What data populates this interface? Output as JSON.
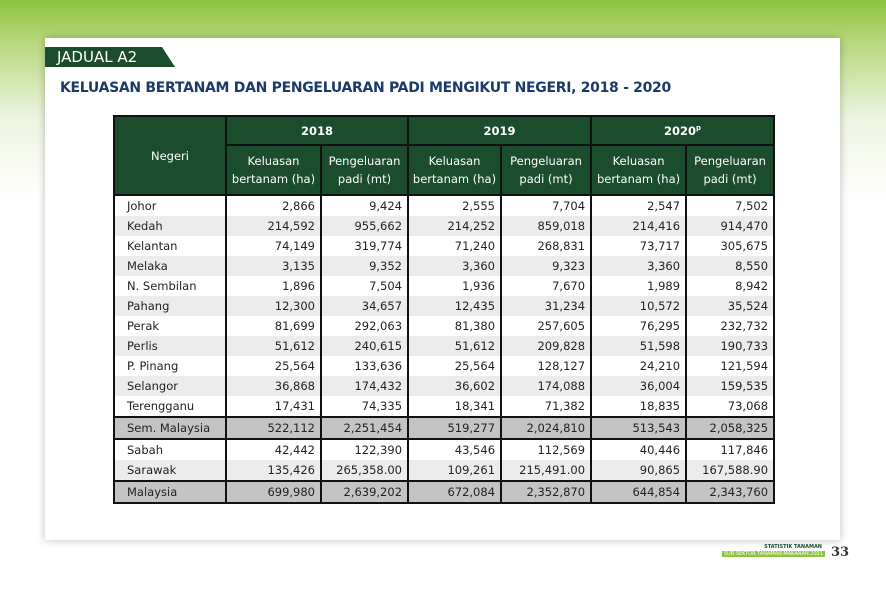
{
  "header": {
    "label": "JADUAL A2",
    "title": "KELUASAN BERTANAM DAN PENGELUARAN PADI MENGIKUT NEGERI, 2018 - 2020"
  },
  "table": {
    "row_header": "Negeri",
    "years": [
      {
        "year": "2018"
      },
      {
        "year": "2019"
      },
      {
        "year": "2020",
        "note": "p"
      }
    ],
    "subcolumns": [
      "Keluasan bertanam (ha)",
      "Pengeluaran padi (mt)"
    ],
    "rows": [
      {
        "name": "Johor",
        "values": [
          "2,866",
          "9,424",
          "2,555",
          "7,704",
          "2,547",
          "7,502"
        ]
      },
      {
        "name": "Kedah",
        "values": [
          "214,592",
          "955,662",
          "214,252",
          "859,018",
          "214,416",
          "914,470"
        ]
      },
      {
        "name": "Kelantan",
        "values": [
          "74,149",
          "319,774",
          "71,240",
          "268,831",
          "73,717",
          "305,675"
        ]
      },
      {
        "name": "Melaka",
        "values": [
          "3,135",
          "9,352",
          "3,360",
          "9,323",
          "3,360",
          "8,550"
        ]
      },
      {
        "name": "N. Sembilan",
        "values": [
          "1,896",
          "7,504",
          "1,936",
          "7,670",
          "1,989",
          "8,942"
        ]
      },
      {
        "name": "Pahang",
        "values": [
          "12,300",
          "34,657",
          "12,435",
          "31,234",
          "10,572",
          "35,524"
        ]
      },
      {
        "name": "Perak",
        "values": [
          "81,699",
          "292,063",
          "81,380",
          "257,605",
          "76,295",
          "232,732"
        ]
      },
      {
        "name": "Perlis",
        "values": [
          "51,612",
          "240,615",
          "51,612",
          "209,828",
          "51,598",
          "190,733"
        ]
      },
      {
        "name": "P. Pinang",
        "values": [
          "25,564",
          "133,636",
          "25,564",
          "128,127",
          "24,210",
          "121,594"
        ]
      },
      {
        "name": "Selangor",
        "values": [
          "36,868",
          "174,432",
          "36,602",
          "174,088",
          "36,004",
          "159,535"
        ]
      },
      {
        "name": "Terengganu",
        "values": [
          "17,431",
          "74,335",
          "18,341",
          "71,382",
          "18,835",
          "73,068"
        ]
      },
      {
        "name": "Sem. Malaysia",
        "values": [
          "522,112",
          "2,251,454",
          "519,277",
          "2,024,810",
          "513,543",
          "2,058,325"
        ],
        "highlight": true
      },
      {
        "name": "Sabah",
        "values": [
          "42,442",
          "122,390",
          "43,546",
          "112,569",
          "40,446",
          "117,846"
        ]
      },
      {
        "name": "Sarawak",
        "values": [
          "135,426",
          "265,358.00",
          "109,261",
          "215,491.00",
          "90,865",
          "167,588.90"
        ]
      },
      {
        "name": "Malaysia",
        "values": [
          "699,980",
          "2,639,202",
          "672,084",
          "2,352,870",
          "644,854",
          "2,343,760"
        ],
        "highlight": true
      }
    ]
  },
  "footer": {
    "line1": "STATISTIK TANAMAN",
    "line2": "SUB-SEKTOR TANAMAN MAKANAN 2021",
    "page": "33"
  }
}
